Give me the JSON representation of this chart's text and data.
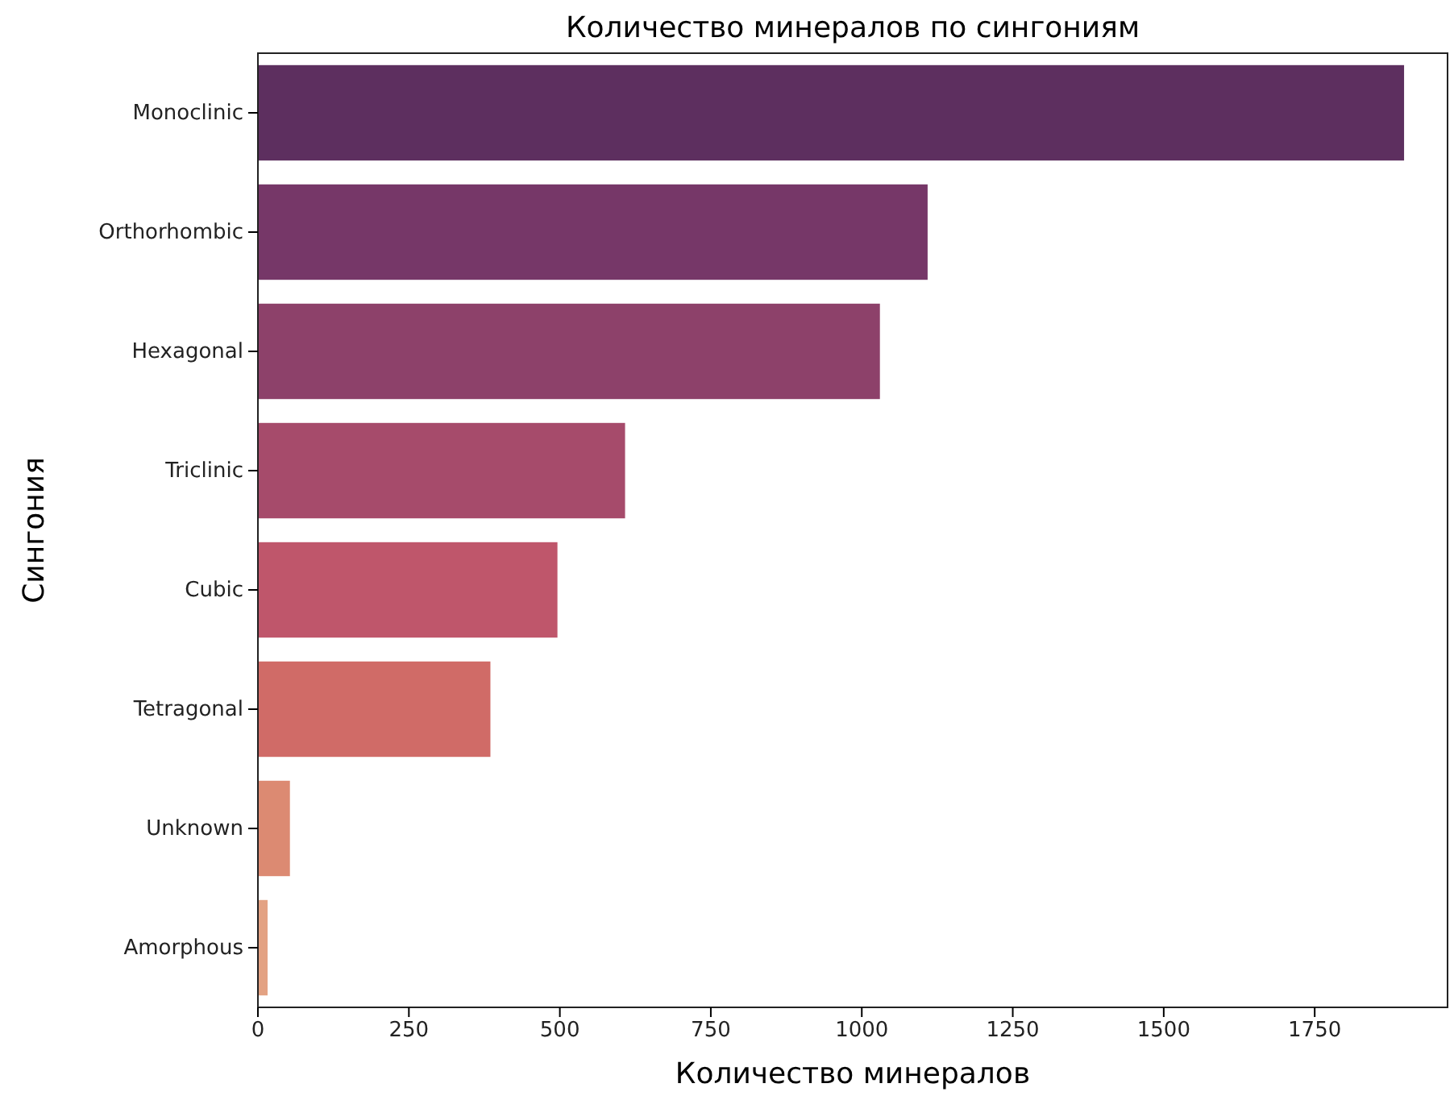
{
  "chart_data": {
    "type": "bar",
    "orientation": "horizontal",
    "title": "Количество минералов по сингониям",
    "xlabel": "Количество минералов",
    "ylabel": "Сингония",
    "categories": [
      "Monoclinic",
      "Orthorhombic",
      "Hexagonal",
      "Triclinic",
      "Cubic",
      "Tetragonal",
      "Unknown",
      "Amorphous"
    ],
    "values": [
      1898,
      1109,
      1030,
      608,
      496,
      385,
      53,
      16
    ],
    "colors": [
      "#5d2f5f",
      "#763768",
      "#8d416a",
      "#a64b6b",
      "#bf566b",
      "#d06b67",
      "#dc8a72",
      "#e3a283"
    ],
    "xlim": [
      0,
      1970
    ],
    "xticks": [
      0,
      250,
      500,
      750,
      1000,
      1250,
      1500,
      1750
    ],
    "grid": false
  }
}
